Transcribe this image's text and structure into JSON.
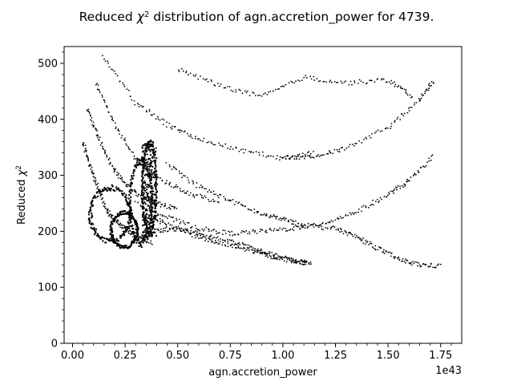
{
  "chart_data": {
    "type": "scatter",
    "title_prefix": "Reduced ",
    "title_symbol": "χ",
    "title_sup": "2",
    "title_suffix": " distribution of agn.accretion_power for 4739.",
    "xlabel": "agn.accretion_power",
    "ylabel_prefix": "Reduced ",
    "ylabel_symbol": "χ",
    "ylabel_sup": "2",
    "x_offset_label": "1e43",
    "xlim": [
      -0.04,
      1.85
    ],
    "ylim": [
      0,
      530
    ],
    "x_ticks": [
      {
        "value": 0.0,
        "label": "0.00"
      },
      {
        "value": 0.25,
        "label": "0.25"
      },
      {
        "value": 0.5,
        "label": "0.50"
      },
      {
        "value": 0.75,
        "label": "0.75"
      },
      {
        "value": 1.0,
        "label": "1.00"
      },
      {
        "value": 1.25,
        "label": "1.25"
      },
      {
        "value": 1.5,
        "label": "1.50"
      },
      {
        "value": 1.75,
        "label": "1.75"
      }
    ],
    "y_ticks": [
      {
        "value": 0,
        "label": "0"
      },
      {
        "value": 100,
        "label": "100"
      },
      {
        "value": 200,
        "label": "200"
      },
      {
        "value": 300,
        "label": "300"
      },
      {
        "value": 400,
        "label": "400"
      },
      {
        "value": 500,
        "label": "500"
      }
    ],
    "grid": false,
    "marker_color": "#000000",
    "point_groups": [
      {
        "x": [
          1.0,
          1.15
        ],
        "y": [
          330,
          340
        ]
      },
      {
        "points": [
          [
            0.05,
            360
          ],
          [
            0.08,
            320
          ],
          [
            0.12,
            280
          ],
          [
            0.16,
            240
          ],
          [
            0.2,
            220
          ],
          [
            0.25,
            205
          ],
          [
            0.3,
            190
          ],
          [
            0.38,
            180
          ]
        ]
      },
      {
        "points": [
          [
            0.07,
            420
          ],
          [
            0.12,
            370
          ],
          [
            0.18,
            320
          ],
          [
            0.25,
            285
          ],
          [
            0.32,
            262
          ],
          [
            0.4,
            250
          ],
          [
            0.5,
            240
          ]
        ]
      },
      {
        "points": [
          [
            0.11,
            465
          ],
          [
            0.2,
            390
          ],
          [
            0.3,
            330
          ],
          [
            0.42,
            292
          ],
          [
            0.55,
            268
          ],
          [
            0.7,
            252
          ]
        ]
      },
      {
        "points": [
          [
            0.14,
            512
          ],
          [
            0.3,
            430
          ],
          [
            0.45,
            390
          ],
          [
            0.6,
            365
          ],
          [
            0.8,
            345
          ],
          [
            1.0,
            330
          ],
          [
            1.15,
            335
          ],
          [
            1.3,
            348
          ],
          [
            1.5,
            385
          ],
          [
            1.65,
            435
          ],
          [
            1.72,
            470
          ]
        ]
      },
      {
        "points": [
          [
            0.28,
            180
          ],
          [
            0.4,
            200
          ],
          [
            0.5,
            205
          ],
          [
            0.6,
            195
          ],
          [
            0.75,
            182
          ],
          [
            0.85,
            170
          ],
          [
            0.95,
            158
          ],
          [
            1.05,
            148
          ],
          [
            1.14,
            143
          ]
        ]
      },
      {
        "points": [
          [
            0.36,
            230
          ],
          [
            0.45,
            212
          ],
          [
            0.6,
            190
          ],
          [
            0.7,
            178
          ],
          [
            0.85,
            165
          ],
          [
            0.95,
            155
          ],
          [
            1.05,
            147
          ],
          [
            1.12,
            143
          ]
        ]
      },
      {
        "points": [
          [
            0.3,
            250
          ],
          [
            0.45,
            225
          ],
          [
            0.6,
            205
          ],
          [
            0.75,
            196
          ],
          [
            0.9,
            200
          ],
          [
            1.05,
            205
          ],
          [
            1.2,
            215
          ],
          [
            1.35,
            235
          ],
          [
            1.5,
            265
          ],
          [
            1.6,
            290
          ],
          [
            1.72,
            335
          ]
        ]
      },
      {
        "points": [
          [
            0.45,
            320
          ],
          [
            0.6,
            280
          ],
          [
            0.75,
            255
          ],
          [
            0.9,
            230
          ],
          [
            1.0,
            222
          ],
          [
            1.1,
            210
          ],
          [
            1.25,
            205
          ],
          [
            1.35,
            190
          ],
          [
            1.45,
            170
          ],
          [
            1.55,
            150
          ],
          [
            1.65,
            140
          ],
          [
            1.75,
            138
          ]
        ]
      },
      {
        "points": [
          [
            0.5,
            490
          ],
          [
            0.7,
            460
          ],
          [
            0.9,
            440
          ],
          [
            1.1,
            475
          ],
          [
            1.3,
            465
          ],
          [
            1.5,
            470
          ],
          [
            1.62,
            440
          ]
        ]
      }
    ],
    "ring_groups": [
      {
        "x_range": [
          0.08,
          0.28
        ],
        "y_range": [
          180,
          280
        ]
      },
      {
        "x_range": [
          0.18,
          0.31
        ],
        "y_range": [
          170,
          235
        ]
      },
      {
        "x_range": [
          0.27,
          0.38
        ],
        "y_range": [
          175,
          330
        ]
      },
      {
        "x_range": [
          0.33,
          0.4
        ],
        "y_range": [
          195,
          360
        ]
      }
    ]
  }
}
